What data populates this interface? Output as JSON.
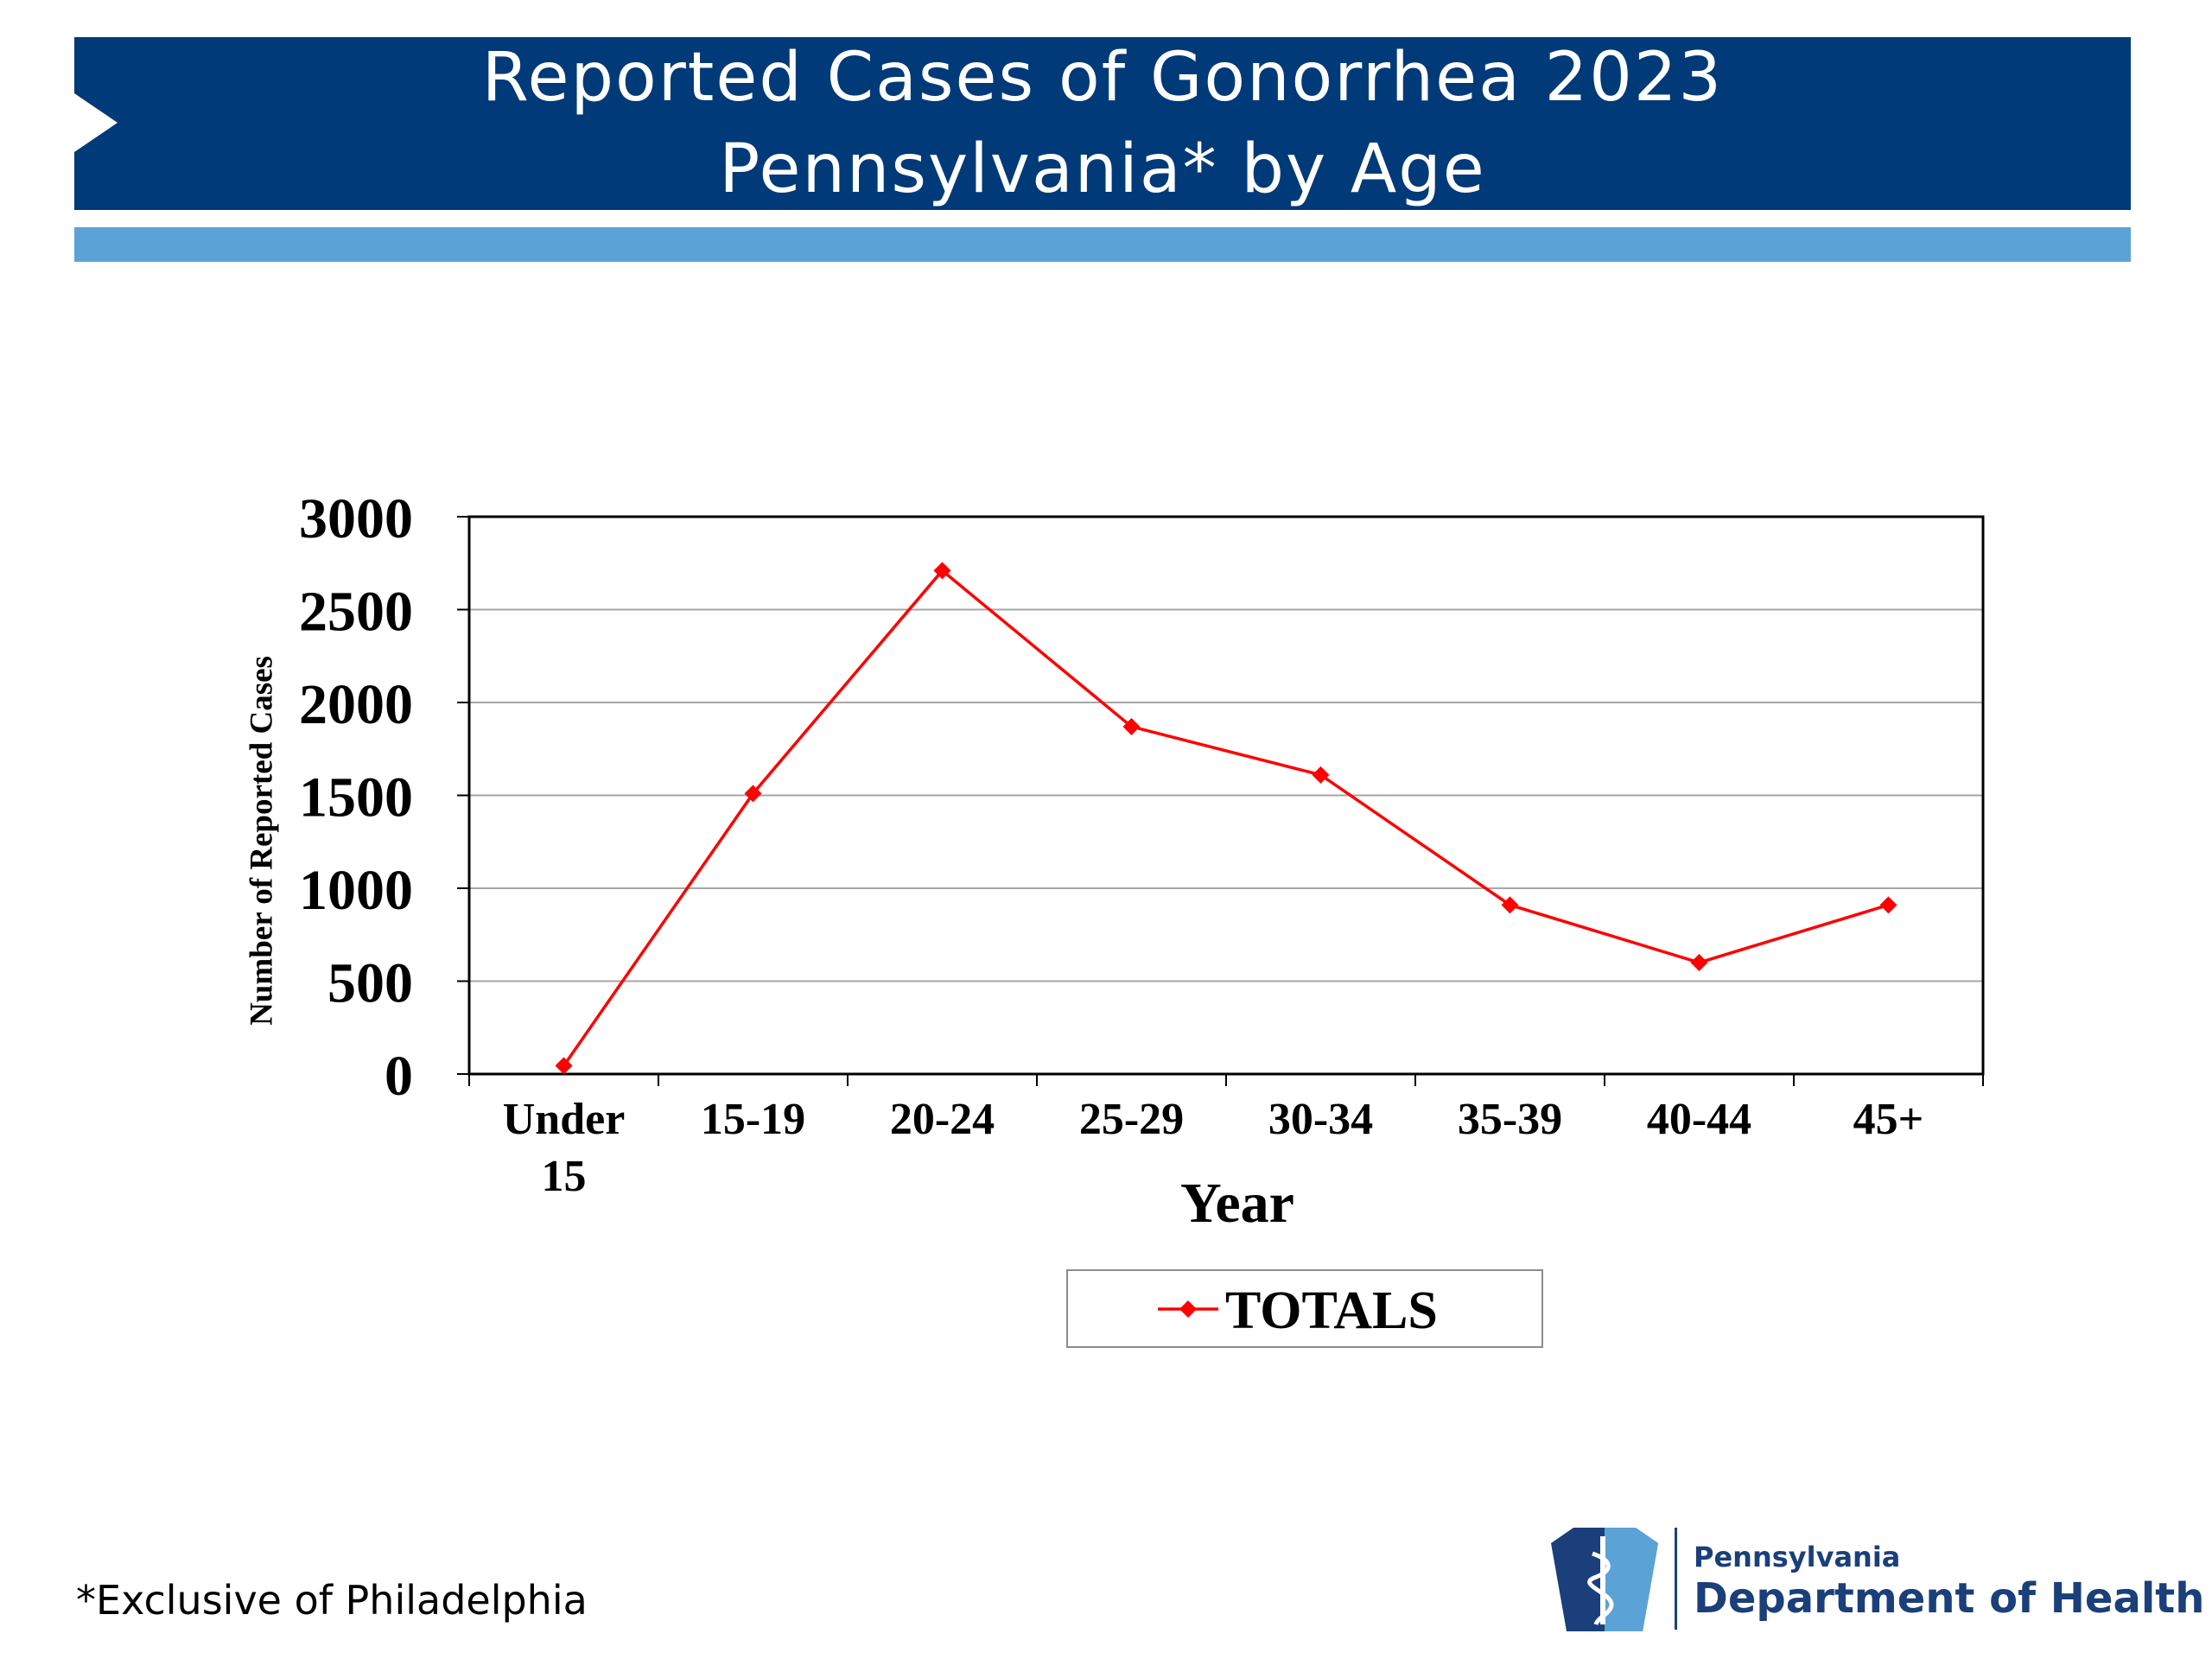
{
  "header": {
    "title_line1": "Reported Cases of Gonorrhea 2023",
    "title_line2": "Pennsylvania* by Age"
  },
  "chart_data": {
    "type": "line",
    "categories": [
      "Under 15",
      "15-19",
      "20-24",
      "25-29",
      "30-34",
      "35-39",
      "40-44",
      "45+"
    ],
    "category_lines": [
      [
        "Under",
        "15"
      ],
      [
        "15-19"
      ],
      [
        "20-24"
      ],
      [
        "25-29"
      ],
      [
        "30-34"
      ],
      [
        "35-39"
      ],
      [
        "40-44"
      ],
      [
        "45+"
      ]
    ],
    "series": [
      {
        "name": "TOTALS",
        "color": "#ff0000",
        "marker": "diamond",
        "values": [
          45,
          1510,
          2710,
          1870,
          1610,
          910,
          600,
          910
        ]
      }
    ],
    "ylim": [
      0,
      3000
    ],
    "yticks": [
      0,
      500,
      1000,
      1500,
      2000,
      2500,
      3000
    ],
    "xlabel": "Year",
    "ylabel": "Number of Reported Cases",
    "grid": "horizontal",
    "legend": "below"
  },
  "footnote": "*Exclusive of Philadelphia",
  "logo": {
    "line1": "Pennsylvania",
    "line2": "Department of Health"
  },
  "colors": {
    "banner": "#003a78",
    "subbar": "#5ba3d6",
    "series": "#ff0000",
    "logo": "#1a3f7a"
  }
}
